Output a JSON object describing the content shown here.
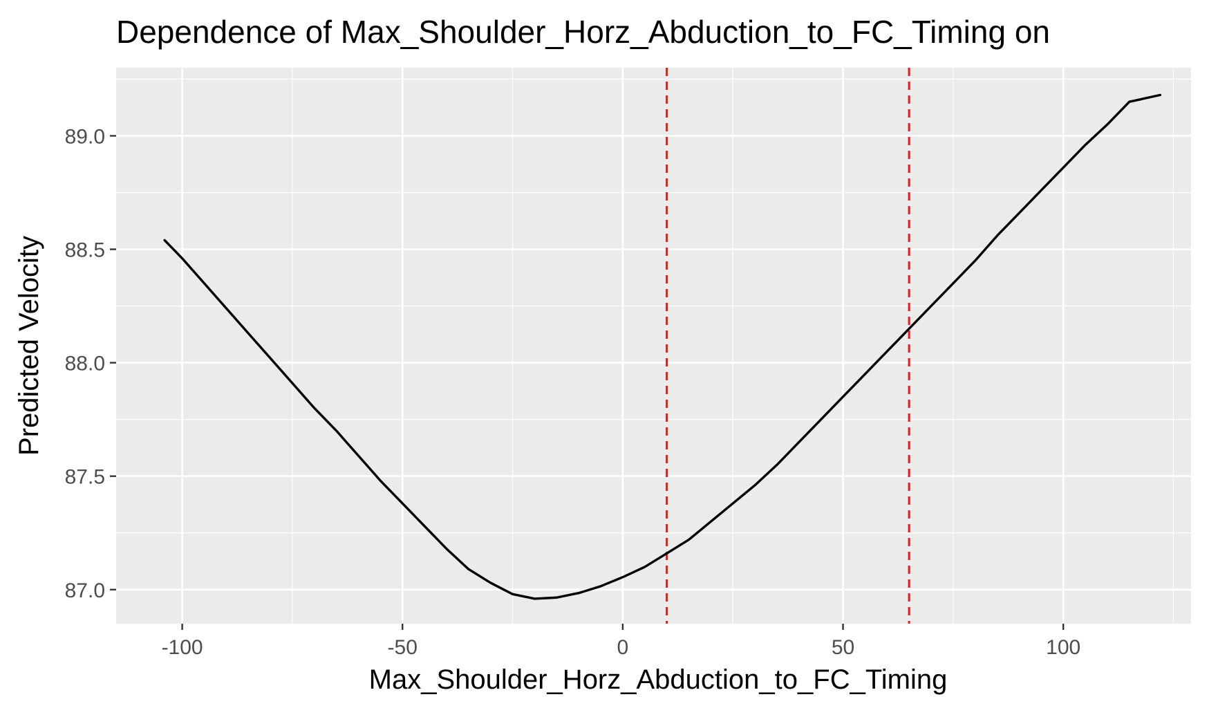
{
  "chart_data": {
    "type": "line",
    "title": "Dependence of Max_Shoulder_Horz_Abduction_to_FC_Timing on",
    "xlabel": "Max_Shoulder_Horz_Abduction_to_FC_Timing",
    "ylabel": "Predicted Velocity",
    "xlim": [
      -115,
      129
    ],
    "ylim": [
      86.85,
      89.3
    ],
    "x_ticks": [
      -100,
      -50,
      0,
      50,
      100
    ],
    "x_tick_labels": [
      "-100",
      "-50",
      "0",
      "50",
      "100"
    ],
    "y_ticks": [
      87.0,
      87.5,
      88.0,
      88.5,
      89.0
    ],
    "y_tick_labels": [
      "87.0",
      "87.5",
      "88.0",
      "88.5",
      "89.0"
    ],
    "grid": true,
    "series": [
      {
        "x": [
          -104,
          -100,
          -95,
          -90,
          -85,
          -80,
          -75,
          -70,
          -65,
          -60,
          -55,
          -50,
          -45,
          -40,
          -35,
          -30,
          -25,
          -20,
          -15,
          -10,
          -5,
          0,
          5,
          10,
          15,
          20,
          25,
          30,
          35,
          40,
          45,
          50,
          55,
          60,
          65,
          70,
          75,
          80,
          85,
          90,
          95,
          100,
          105,
          110,
          115,
          122
        ],
        "y": [
          88.54,
          88.46,
          88.35,
          88.24,
          88.13,
          88.02,
          87.91,
          87.8,
          87.7,
          87.59,
          87.48,
          87.38,
          87.28,
          87.18,
          87.09,
          87.03,
          86.98,
          86.96,
          86.965,
          86.985,
          87.015,
          87.055,
          87.1,
          87.16,
          87.22,
          87.3,
          87.38,
          87.46,
          87.55,
          87.65,
          87.75,
          87.85,
          87.95,
          88.05,
          88.15,
          88.25,
          88.35,
          88.45,
          88.56,
          88.66,
          88.76,
          88.86,
          88.96,
          89.05,
          89.15,
          89.18
        ],
        "color": "#000000"
      }
    ],
    "vlines": [
      {
        "x": 10,
        "color": "#e31a1c",
        "style": "dashed"
      },
      {
        "x": 65,
        "color": "#e31a1c",
        "style": "dashed"
      }
    ],
    "panel_background": "#ebebeb",
    "grid_color": "#ffffff"
  }
}
